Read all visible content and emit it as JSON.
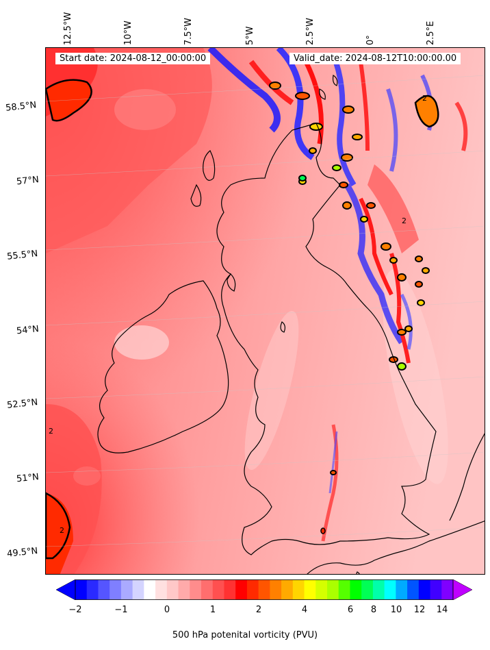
{
  "map": {
    "start_date": "Start date: 2024-08-12_00:00:00",
    "valid_date": "Valid_date: 2024-08-12T10:00:00.00",
    "longitude_labels": [
      "12.5°W",
      "10°W",
      "7.5°W",
      "5°W",
      "2.5°W",
      "0°",
      "2.5°E"
    ],
    "latitude_labels": [
      "58.5°N",
      "57°N",
      "55.5°N",
      "54°N",
      "52.5°N",
      "51°N",
      "49.5°N"
    ],
    "contour_label": "2",
    "field": "500 hPa potential vorticity",
    "projection": "lambert-conformal",
    "extent": {
      "lon_min": -13,
      "lon_max": 3.5,
      "lat_min": 49.3,
      "lat_max": 59.3
    },
    "colors": {
      "background_field": "#ff9999",
      "strong_field": "#ff4a4a",
      "coastline": "#000000"
    }
  },
  "colorbar": {
    "label": "500 hPa potenital vorticity (PVU)",
    "ticks": [
      "−2",
      "−1",
      "0",
      "1",
      "2",
      "4",
      "6",
      "8",
      "10",
      "12",
      "14"
    ],
    "colors": [
      "#0000ff",
      "#2a2aff",
      "#5555ff",
      "#7f7fff",
      "#aaaaff",
      "#d4d4ff",
      "#ffffff",
      "#ffe0e0",
      "#ffc8c8",
      "#ffaaaa",
      "#ff8c8c",
      "#ff6e6e",
      "#ff5050",
      "#ff3232",
      "#ff0000",
      "#ff2a00",
      "#ff5500",
      "#ff8000",
      "#ffaa00",
      "#ffd500",
      "#ffff00",
      "#d4ff00",
      "#aaff00",
      "#55ff00",
      "#00ff00",
      "#00ff55",
      "#00ffaa",
      "#00ffff",
      "#00aaff",
      "#0055ff",
      "#0000ff",
      "#4000ff",
      "#8000ff"
    ],
    "under_color": "#0000ff",
    "over_color": "#bf00ff"
  }
}
